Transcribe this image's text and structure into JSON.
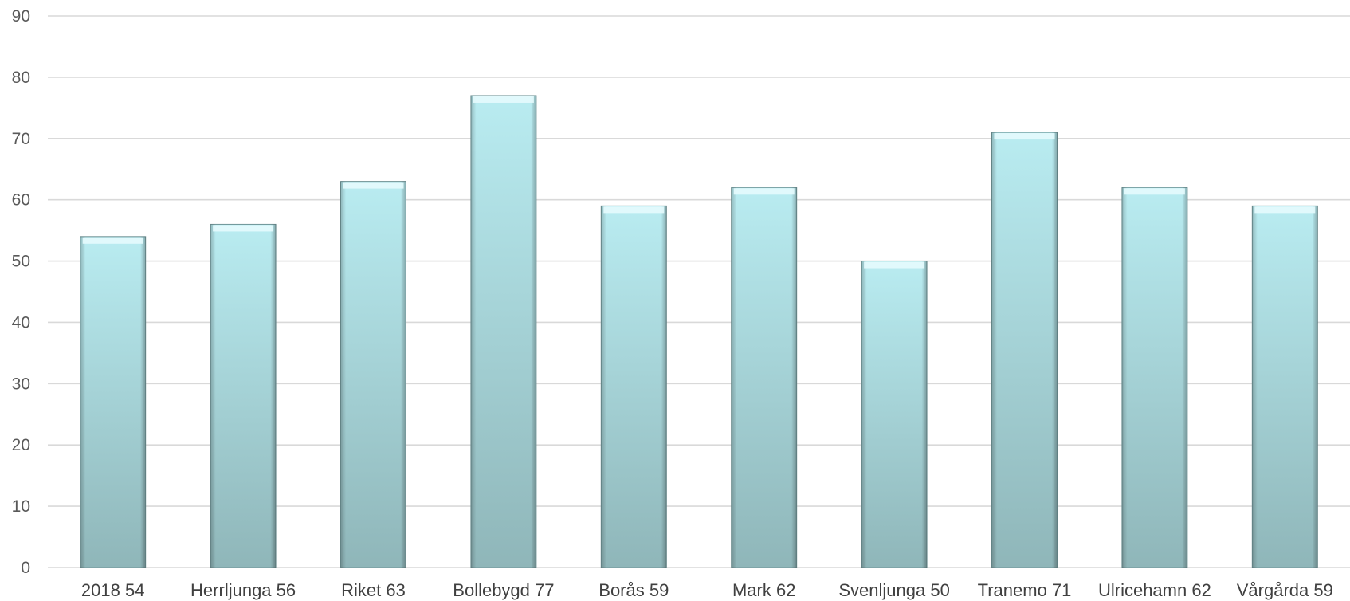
{
  "chart_data": {
    "type": "bar",
    "title": "",
    "xlabel": "",
    "ylabel": "",
    "categories": [
      "2018 54",
      "Herrljunga 56",
      "Riket 63",
      "Bollebygd 77",
      "Borås 59",
      "Mark 62",
      "Svenljunga 50",
      "Tranemo 71",
      "Ulricehamn 62",
      "Vårgårda 59"
    ],
    "values": [
      54,
      56,
      63,
      77,
      59,
      62,
      50,
      71,
      62,
      59
    ],
    "ylim": [
      0,
      90
    ],
    "yticks": [
      "0",
      "10",
      "20",
      "30",
      "40",
      "50",
      "60",
      "70",
      "80",
      "90"
    ],
    "grid": true,
    "legend": "none",
    "colors": {
      "bar_top": "#b9ecf1",
      "bar_bottom": "#8fb6b9",
      "bar_edge": "#6f9396",
      "grid": "#d9d9d9"
    }
  }
}
